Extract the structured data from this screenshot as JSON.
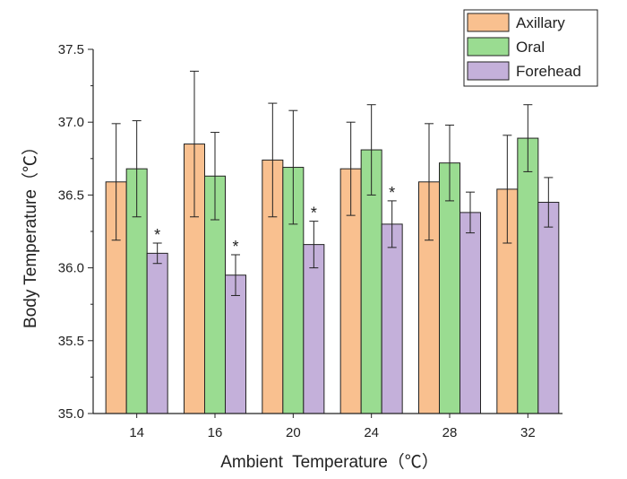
{
  "chart_data": {
    "type": "bar",
    "xlabel": "Ambient  Temperature（℃）",
    "ylabel": "Body Temperature（℃）",
    "categories": [
      "14",
      "16",
      "20",
      "24",
      "28",
      "32"
    ],
    "ylim": [
      35.0,
      37.5
    ],
    "yticks": [
      "35.0",
      "35.5",
      "36.0",
      "36.5",
      "37.0",
      "37.5"
    ],
    "legend_position": "top-right",
    "series": [
      {
        "name": "Axillary",
        "color": "#F9C08F",
        "values": [
          36.59,
          36.85,
          36.74,
          36.68,
          36.59,
          36.54
        ],
        "errors": [
          0.4,
          0.5,
          0.39,
          0.32,
          0.4,
          0.37
        ]
      },
      {
        "name": "Oral",
        "color": "#9ADC91",
        "values": [
          36.68,
          36.63,
          36.69,
          36.81,
          36.72,
          36.89
        ],
        "errors": [
          0.33,
          0.3,
          0.39,
          0.31,
          0.26,
          0.23
        ]
      },
      {
        "name": "Forehead",
        "color": "#C4B0DA",
        "values": [
          36.1,
          35.95,
          36.16,
          36.3,
          36.38,
          36.45
        ],
        "errors": [
          0.07,
          0.14,
          0.16,
          0.16,
          0.14,
          0.17
        ]
      }
    ],
    "annotations": [
      {
        "series": "Forehead",
        "category": "14",
        "text": "*"
      },
      {
        "series": "Forehead",
        "category": "16",
        "text": "*"
      },
      {
        "series": "Forehead",
        "category": "20",
        "text": "*"
      },
      {
        "series": "Forehead",
        "category": "24",
        "text": "*"
      }
    ]
  }
}
